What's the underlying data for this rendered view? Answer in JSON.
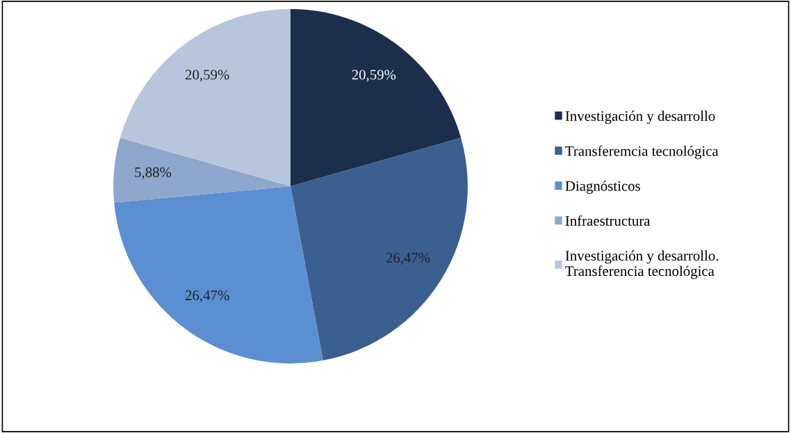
{
  "chart_data": {
    "type": "pie",
    "categories": [
      "Investigación y desarrollo",
      "Transferemcia tecnológica",
      "Diagnósticos",
      "Infraestructura",
      "Investigación y desarrollo.\nTransferencia tecnológica"
    ],
    "values": [
      20.59,
      26.47,
      26.47,
      5.88,
      20.59
    ],
    "value_labels": [
      "20,59%",
      "26,47%",
      "26,47%",
      "5,88%",
      "20,59%"
    ],
    "colors": [
      "#1b2e4b",
      "#3b5f8e",
      "#5b8fd2",
      "#8ea7cc",
      "#b8c6dd"
    ],
    "legend": "right"
  }
}
